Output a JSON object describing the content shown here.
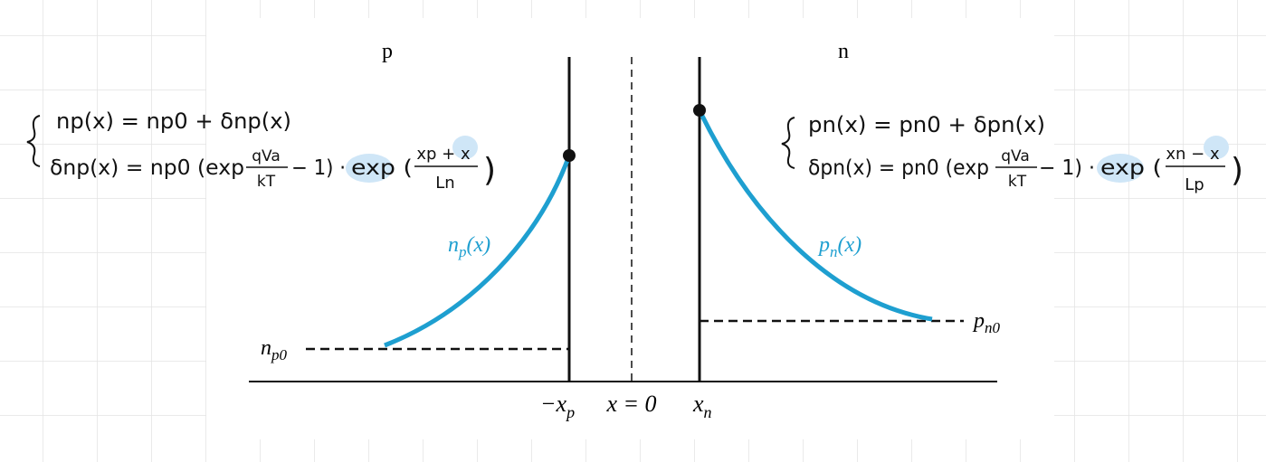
{
  "regions": {
    "p": "p",
    "n": "n"
  },
  "curve_labels": {
    "left": {
      "symbol": "n",
      "sub": "p",
      "arg": "(x)"
    },
    "right": {
      "symbol": "p",
      "sub": "n",
      "arg": "(x)"
    }
  },
  "levels": {
    "left": {
      "symbol": "n",
      "sub": "p0"
    },
    "right": {
      "symbol": "p",
      "sub": "n0"
    }
  },
  "axis_labels": {
    "minus_xp": {
      "symbol": "−x",
      "sub": "p"
    },
    "origin": "x = 0",
    "xn": {
      "symbol": "x",
      "sub": "n"
    }
  },
  "notes": {
    "left": {
      "line1": "np(x) = np0 + δnp(x)",
      "line2": {
        "lhs": "δnp(x) = np0 (exp",
        "q_num": "qVa",
        "q_den": "kT",
        "minus_one": "− 1) ·",
        "exp2": "exp (",
        "arg_num": "xp + x",
        "arg_den": "Ln",
        "close": ")"
      }
    },
    "right": {
      "line1": "pn(x) = pn0 + δpn(x)",
      "line2": {
        "lhs": "δpn(x) = pn0 (exp",
        "q_num": "qVa",
        "q_den": "kT",
        "minus_one": "− 1) ·",
        "exp2": "exp (",
        "arg_num": "xn − x",
        "arg_den": "Lp",
        "close": ")"
      }
    }
  }
}
